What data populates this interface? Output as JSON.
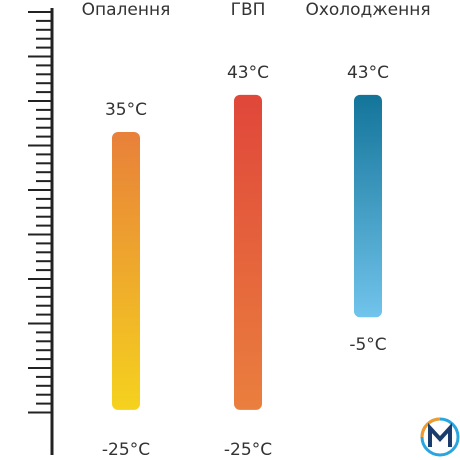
{
  "chart_data": {
    "type": "range",
    "categories": [
      "Опалення",
      "ГВП",
      "Охолодження"
    ],
    "low": [
      -25,
      -25,
      -5
    ],
    "high": [
      35,
      43,
      43
    ],
    "low_labels": [
      "-25°C",
      "-25°C",
      "-5°C"
    ],
    "high_labels": [
      "35°C",
      "43°C",
      "43°C"
    ],
    "colors": [
      [
        "#e8803a",
        "#f5d21e"
      ],
      [
        "#e0473a",
        "#ea7f3e"
      ],
      [
        "#137499",
        "#71c4ec"
      ]
    ],
    "ylim": [
      -30,
      50
    ]
  }
}
